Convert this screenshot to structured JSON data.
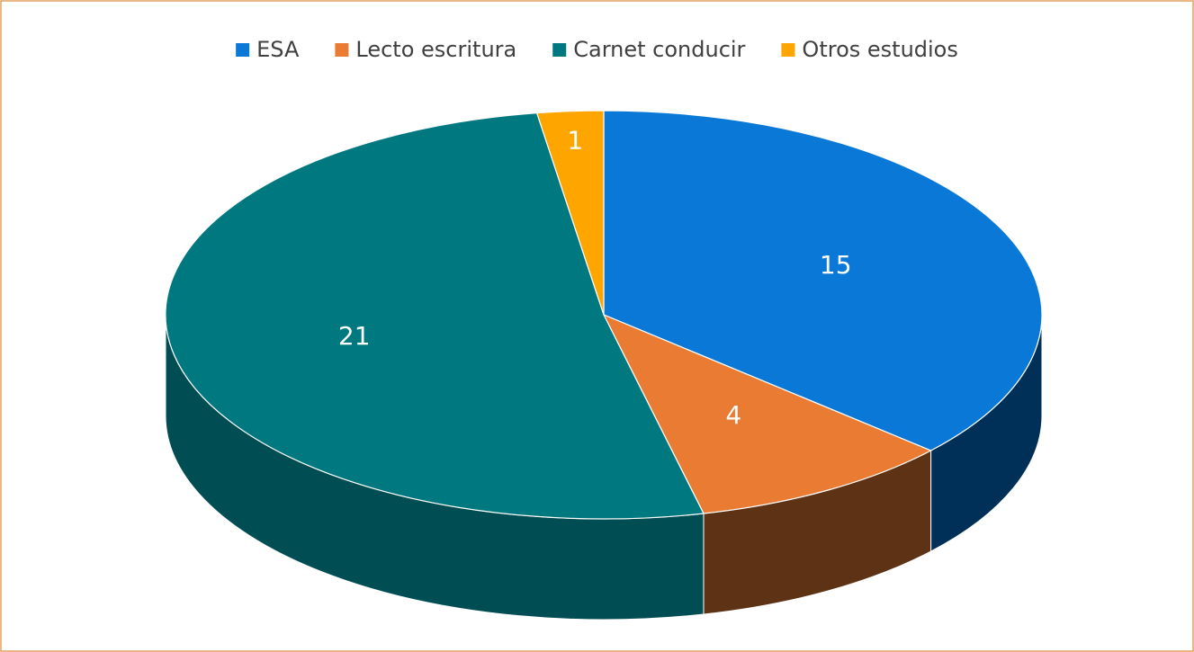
{
  "chart_data": {
    "type": "pie3d",
    "categories": [
      "ESA",
      "Lecto escritura",
      "Carnet conducir",
      "Otros estudios"
    ],
    "values": [
      15,
      4,
      21,
      1
    ],
    "colors": [
      "#0a78d7",
      "#e97b33",
      "#00787f",
      "#ffa500"
    ],
    "side_colors": [
      "#003057",
      "#5e3214",
      "#004e53",
      "#9a6400"
    ],
    "legend": "top"
  }
}
